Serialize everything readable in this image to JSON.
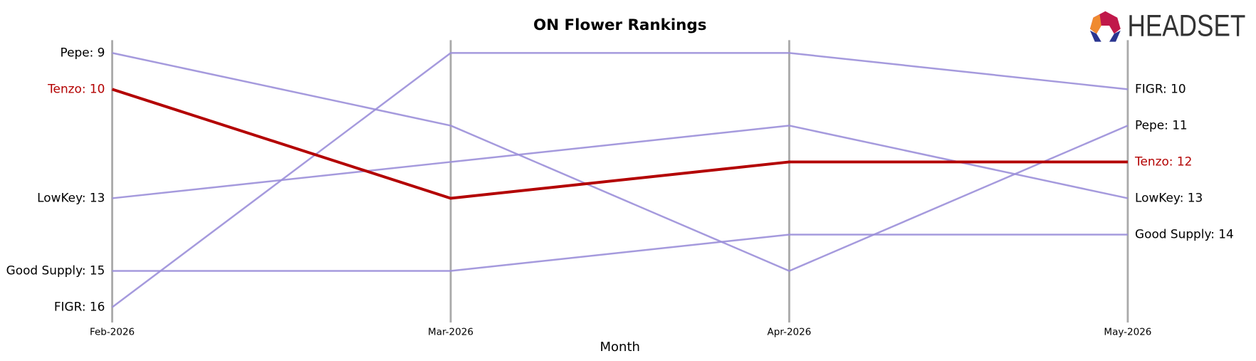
{
  "chart_data": {
    "type": "bump",
    "title": "ON Flower Rankings",
    "x_label": "Month",
    "categories": [
      "Feb-2026",
      "Mar-2026",
      "Apr-2026",
      "May-2026"
    ],
    "ylim": [
      16,
      9
    ],
    "series": [
      {
        "name": "Pepe",
        "color": "#9b8fd9",
        "values": [
          9,
          11,
          15,
          11
        ],
        "value_labels": [
          "Pepe: 9",
          null,
          null,
          "Pepe: 11"
        ]
      },
      {
        "name": "LowKey",
        "color": "#9b8fd9",
        "values": [
          13,
          12,
          11,
          13
        ],
        "value_labels": [
          "LowKey: 13",
          null,
          null,
          "LowKey: 13"
        ]
      },
      {
        "name": "Good Supply",
        "color": "#9b8fd9",
        "values": [
          15,
          15,
          14,
          14
        ],
        "value_labels": [
          "Good Supply: 15",
          null,
          null,
          "Good Supply: 14"
        ]
      },
      {
        "name": "FIGR",
        "color": "#9b8fd9",
        "values": [
          16,
          9,
          9,
          10
        ],
        "value_labels": [
          "FIGR: 16",
          null,
          null,
          "FIGR: 10"
        ]
      },
      {
        "name": "Tenzo",
        "color": "#b30000",
        "highlight": true,
        "values": [
          10,
          13,
          12,
          12
        ],
        "value_labels": [
          "Tenzo: 10",
          null,
          null,
          "Tenzo: 12"
        ]
      }
    ]
  },
  "logo": "HEADSET"
}
